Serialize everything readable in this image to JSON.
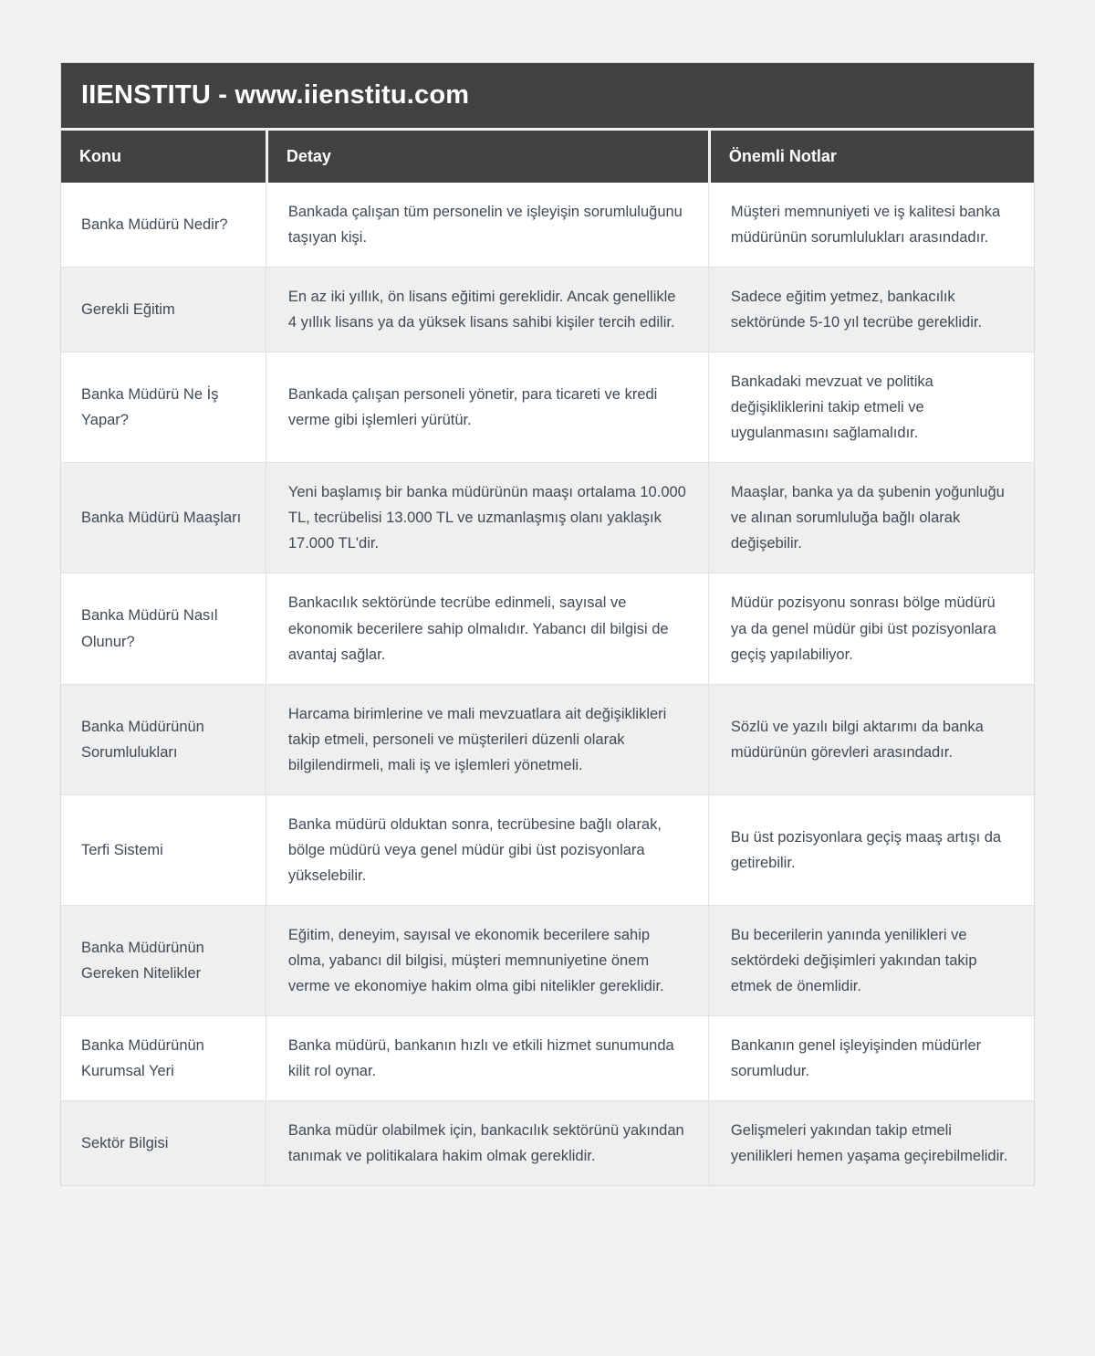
{
  "title_bar": {
    "text": "IIENSTITU - www.iienstitu.com"
  },
  "table": {
    "columns": [
      {
        "label": "Konu"
      },
      {
        "label": "Detay"
      },
      {
        "label": "Önemli Notlar"
      }
    ],
    "rows": [
      {
        "konu": "Banka Müdürü Nedir?",
        "detay": "Bankada çalışan tüm personelin ve işleyişin sorumluluğunu taşıyan kişi.",
        "notlar": "Müşteri memnuniyeti ve iş kalitesi banka müdürünün sorumlulukları arasındadır."
      },
      {
        "konu": "Gerekli Eğitim",
        "detay": "En az iki yıllık, ön lisans eğitimi gereklidir. Ancak genellikle 4 yıllık lisans ya da yüksek lisans sahibi kişiler tercih edilir.",
        "notlar": "Sadece eğitim yetmez, bankacılık sektöründe 5-10 yıl tecrübe gereklidir."
      },
      {
        "konu": "Banka Müdürü Ne İş Yapar?",
        "detay": "Bankada çalışan personeli yönetir, para ticareti ve kredi verme gibi işlemleri yürütür.",
        "notlar": "Bankadaki mevzuat ve politika değişikliklerini takip etmeli ve uygulanmasını sağlamalıdır."
      },
      {
        "konu": "Banka Müdürü Maaşları",
        "detay": "Yeni başlamış bir banka müdürünün maaşı ortalama 10.000 TL, tecrübelisi 13.000 TL ve uzmanlaşmış olanı yaklaşık 17.000 TL'dir.",
        "notlar": "Maaşlar, banka ya da şubenin yoğunluğu ve alınan sorumluluğa bağlı olarak değişebilir."
      },
      {
        "konu": "Banka Müdürü Nasıl Olunur?",
        "detay": "Bankacılık sektöründe tecrübe edinmeli, sayısal ve ekonomik becerilere sahip olmalıdır. Yabancı dil bilgisi de avantaj sağlar.",
        "notlar": "Müdür pozisyonu sonrası bölge müdürü ya da genel müdür gibi üst pozisyonlara geçiş yapılabiliyor."
      },
      {
        "konu": "Banka Müdürünün Sorumlulukları",
        "detay": "Harcama birimlerine ve mali mevzuatlara ait değişiklikleri takip etmeli, personeli ve müşterileri düzenli olarak bilgilendirmeli, mali iş ve işlemleri yönetmeli.",
        "notlar": "Sözlü ve yazılı bilgi aktarımı da banka müdürünün görevleri arasındadır."
      },
      {
        "konu": "Terfi Sistemi",
        "detay": "Banka müdürü olduktan sonra, tecrübesine bağlı olarak, bölge müdürü veya genel müdür gibi üst pozisyonlara yükselebilir.",
        "notlar": "Bu üst pozisyonlara geçiş maaş artışı da getirebilir."
      },
      {
        "konu": "Banka Müdürünün Gereken Nitelikler",
        "detay": "Eğitim, deneyim, sayısal ve ekonomik becerilere sahip olma, yabancı dil bilgisi, müşteri memnuniyetine önem verme ve ekonomiye hakim olma gibi nitelikler gereklidir.",
        "notlar": "Bu becerilerin yanında yenilikleri ve sektördeki değişimleri yakından takip etmek de önemlidir."
      },
      {
        "konu": "Banka Müdürünün Kurumsal Yeri",
        "detay": "Banka müdürü, bankanın hızlı ve etkili hizmet sunumunda kilit rol oynar.",
        "notlar": "Bankanın genel işleyişinden müdürler sorumludur."
      },
      {
        "konu": "Sektör Bilgisi",
        "detay": "Banka müdür olabilmek için, bankacılık sektörünü yakından tanımak ve politikalara hakim olmak gereklidir.",
        "notlar": "Gelişmeleri yakından takip etmeli yenilikleri hemen yaşama geçirebilmelidir."
      }
    ]
  },
  "colors": {
    "header_bg": "#424242",
    "header_text": "#ffffff",
    "body_text": "#3f4a54",
    "row_bg": "#ffffff",
    "row_alt_bg": "#efefef",
    "page_bg": "#f1f2f3",
    "divider": "#e2e2e2"
  }
}
